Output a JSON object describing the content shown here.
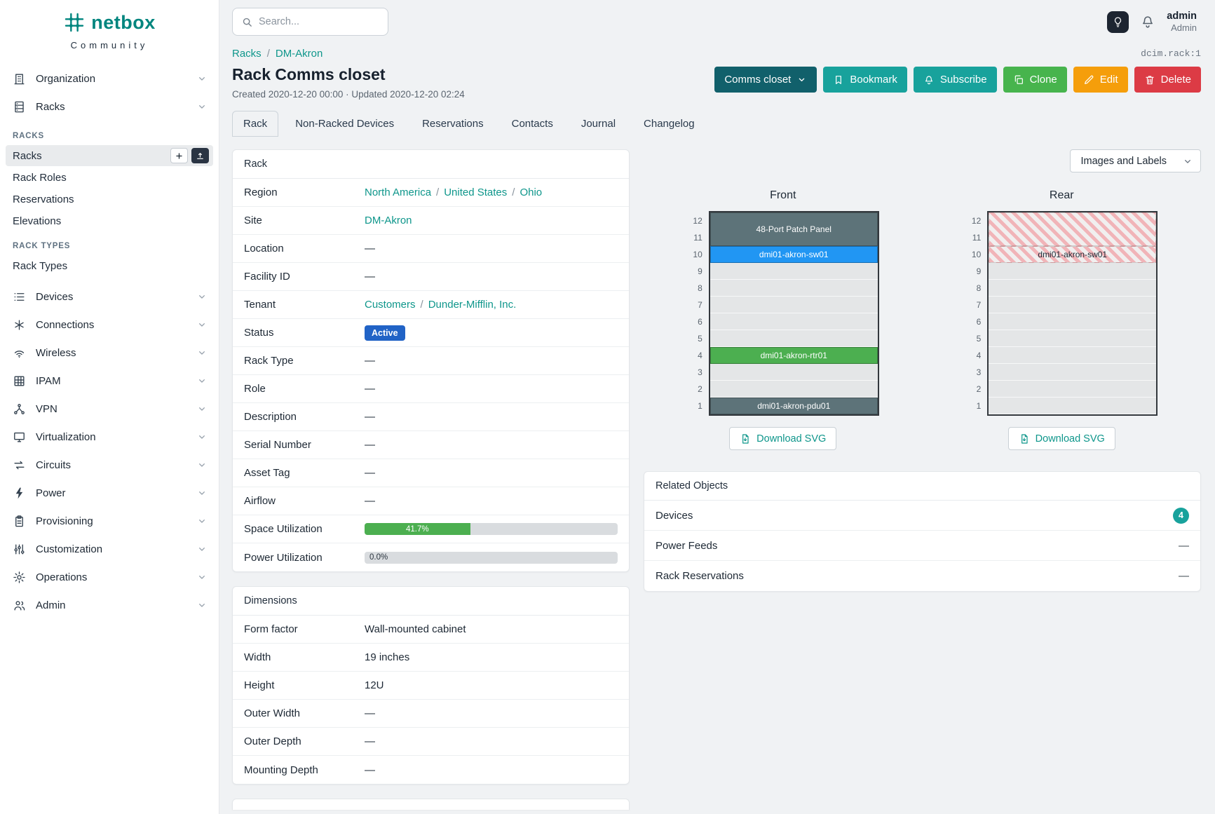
{
  "brand": {
    "name": "netbox",
    "subtitle": "Community"
  },
  "topbar": {
    "search_placeholder": "Search...",
    "user_name": "admin",
    "user_role": "Admin"
  },
  "colors": {
    "brand_teal": "#00857e",
    "link_teal": "#0e968b",
    "button_teal": "#18a29c",
    "button_context_teal": "#11606b",
    "button_green": "#47b44d",
    "button_orange": "#f59e0b",
    "button_red": "#dc3b45",
    "status_active_blue": "#2163c6",
    "progress_green": "#4caf50",
    "count_badge_teal": "#18a29c"
  },
  "sidebar": {
    "top_items": [
      {
        "label": "Organization",
        "icon": "building"
      },
      {
        "label": "Racks",
        "icon": "rack",
        "expanded": true
      }
    ],
    "racks_subnav": [
      {
        "header": "RACKS",
        "items": [
          {
            "label": "Racks",
            "active": true,
            "actions": [
              "add",
              "import"
            ]
          },
          {
            "label": "Rack Roles"
          },
          {
            "label": "Reservations"
          },
          {
            "label": "Elevations"
          }
        ]
      },
      {
        "header": "RACK TYPES",
        "items": [
          {
            "label": "Rack Types"
          }
        ]
      }
    ],
    "bottom_items": [
      {
        "label": "Devices",
        "icon": "devices"
      },
      {
        "label": "Connections",
        "icon": "connections"
      },
      {
        "label": "Wireless",
        "icon": "wireless"
      },
      {
        "label": "IPAM",
        "icon": "ipam"
      },
      {
        "label": "VPN",
        "icon": "vpn"
      },
      {
        "label": "Virtualization",
        "icon": "virtualization"
      },
      {
        "label": "Circuits",
        "icon": "circuits"
      },
      {
        "label": "Power",
        "icon": "power"
      },
      {
        "label": "Provisioning",
        "icon": "provisioning"
      },
      {
        "label": "Customization",
        "icon": "customization"
      },
      {
        "label": "Operations",
        "icon": "operations"
      },
      {
        "label": "Admin",
        "icon": "admin"
      }
    ]
  },
  "page": {
    "breadcrumb": [
      {
        "label": "Racks"
      },
      {
        "label": "DM-Akron"
      }
    ],
    "object_id": "dcim.rack:1",
    "title": "Rack Comms closet",
    "meta": "Created 2020-12-20 00:00 · Updated 2020-12-20 02:24",
    "actions": [
      {
        "label": "Comms closet",
        "icon": "chevron",
        "style": "context",
        "icon_position": "after"
      },
      {
        "label": "Bookmark",
        "icon": "bookmark",
        "style": "teal"
      },
      {
        "label": "Subscribe",
        "icon": "bell",
        "style": "teal"
      },
      {
        "label": "Clone",
        "icon": "copy",
        "style": "green"
      },
      {
        "label": "Edit",
        "icon": "pencil",
        "style": "orange"
      },
      {
        "label": "Delete",
        "icon": "trash",
        "style": "red"
      }
    ],
    "tabs": [
      {
        "label": "Rack",
        "active": true
      },
      {
        "label": "Non-Racked Devices"
      },
      {
        "label": "Reservations"
      },
      {
        "label": "Contacts"
      },
      {
        "label": "Journal"
      },
      {
        "label": "Changelog"
      }
    ]
  },
  "rack_card": {
    "title": "Rack",
    "rows": [
      {
        "label": "Region",
        "type": "links",
        "parts": [
          "North America",
          "United States",
          "Ohio"
        ]
      },
      {
        "label": "Site",
        "type": "links",
        "parts": [
          "DM-Akron"
        ]
      },
      {
        "label": "Location",
        "type": "text",
        "value": "—"
      },
      {
        "label": "Facility ID",
        "type": "text",
        "value": "—"
      },
      {
        "label": "Tenant",
        "type": "links",
        "parts": [
          "Customers",
          "Dunder-Mifflin, Inc."
        ]
      },
      {
        "label": "Status",
        "type": "badge",
        "value": "Active",
        "color": "#2163c6"
      },
      {
        "label": "Rack Type",
        "type": "text",
        "value": "—"
      },
      {
        "label": "Role",
        "type": "text",
        "value": "—"
      },
      {
        "label": "Description",
        "type": "text",
        "value": "—"
      },
      {
        "label": "Serial Number",
        "type": "text",
        "value": "—"
      },
      {
        "label": "Asset Tag",
        "type": "text",
        "value": "—"
      },
      {
        "label": "Airflow",
        "type": "text",
        "value": "—"
      },
      {
        "label": "Space Utilization",
        "type": "progress",
        "percent": 41.7,
        "text": "41.7%",
        "color": "#4caf50"
      },
      {
        "label": "Power Utilization",
        "type": "progress",
        "percent": 0,
        "text": "0.0%",
        "color": "#4caf50"
      }
    ]
  },
  "dimensions_card": {
    "title": "Dimensions",
    "rows": [
      {
        "label": "Form factor",
        "value": "Wall-mounted cabinet"
      },
      {
        "label": "Width",
        "value": "19 inches"
      },
      {
        "label": "Height",
        "value": "12U"
      },
      {
        "label": "Outer Width",
        "value": "—"
      },
      {
        "label": "Outer Depth",
        "value": "—"
      },
      {
        "label": "Mounting Depth",
        "value": "—"
      }
    ]
  },
  "elevation": {
    "view_selector": "Images and Labels",
    "download_label": "Download SVG",
    "units": [
      12,
      11,
      10,
      9,
      8,
      7,
      6,
      5,
      4,
      3,
      2,
      1
    ],
    "front": {
      "title": "Front",
      "slots": [
        {
          "span": 2,
          "label": "48-Port Patch Panel",
          "bg": "#5d7379",
          "fg": "#ffffff"
        },
        {
          "span": 1,
          "label": "dmi01-akron-sw01",
          "bg": "#2196f3",
          "fg": "#ffffff"
        },
        {
          "span": 1
        },
        {
          "span": 1
        },
        {
          "span": 1
        },
        {
          "span": 1
        },
        {
          "span": 1
        },
        {
          "span": 1,
          "label": "dmi01-akron-rtr01",
          "bg": "#4caf50",
          "fg": "#ffffff"
        },
        {
          "span": 1
        },
        {
          "span": 1
        },
        {
          "span": 1,
          "label": "dmi01-akron-pdu01",
          "bg": "#5d7379",
          "fg": "#ffffff"
        }
      ]
    },
    "rear": {
      "title": "Rear",
      "slots": [
        {
          "span": 2,
          "striped": true
        },
        {
          "span": 1,
          "label": "dmi01-akron-sw01",
          "striped": true,
          "fg": "#1d2834"
        },
        {
          "span": 1
        },
        {
          "span": 1
        },
        {
          "span": 1
        },
        {
          "span": 1
        },
        {
          "span": 1
        },
        {
          "span": 1
        },
        {
          "span": 1
        },
        {
          "span": 1
        },
        {
          "span": 1
        }
      ]
    }
  },
  "related_objects": {
    "title": "Related Objects",
    "rows": [
      {
        "label": "Devices",
        "badge": "4"
      },
      {
        "label": "Power Feeds",
        "value": "—"
      },
      {
        "label": "Rack Reservations",
        "value": "—"
      }
    ]
  }
}
